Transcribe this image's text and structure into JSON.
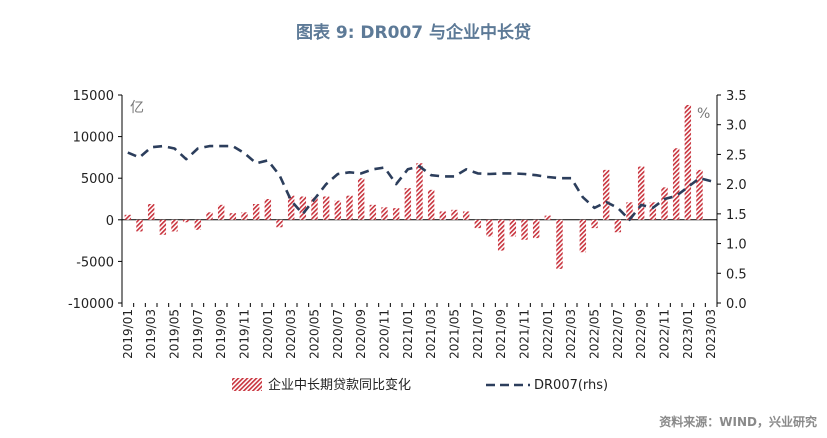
{
  "figure": {
    "title": "图表 9: DR007 与企业中长贷",
    "source": "资料来源：WIND，兴业研究"
  },
  "chart_data": {
    "type": "bar",
    "left_unit": "亿",
    "right_unit": "%",
    "ylim_left": [
      -10000,
      15000
    ],
    "yticks_left": [
      "15000",
      "10000",
      "5000",
      "0",
      "-5000",
      "-10000"
    ],
    "ylim_right": [
      0,
      3.5
    ],
    "yticks_right": [
      "3.5",
      "3.0",
      "2.5",
      "2.0",
      "1.5",
      "1.0",
      "0.5",
      "0.0"
    ],
    "categories": [
      "2019/01",
      "2019/02",
      "2019/03",
      "2019/04",
      "2019/05",
      "2019/06",
      "2019/07",
      "2019/08",
      "2019/09",
      "2019/10",
      "2019/11",
      "2019/12",
      "2020/01",
      "2020/02",
      "2020/03",
      "2020/04",
      "2020/05",
      "2020/06",
      "2020/07",
      "2020/08",
      "2020/09",
      "2020/10",
      "2020/11",
      "2020/12",
      "2021/01",
      "2021/02",
      "2021/03",
      "2021/04",
      "2021/05",
      "2021/06",
      "2021/07",
      "2021/08",
      "2021/09",
      "2021/10",
      "2021/11",
      "2021/12",
      "2022/01",
      "2022/02",
      "2022/03",
      "2022/04",
      "2022/05",
      "2022/06",
      "2022/07",
      "2022/08",
      "2022/09",
      "2022/10",
      "2022/11",
      "2022/12",
      "2023/01",
      "2023/02",
      "2023/03"
    ],
    "xtick_labels": [
      "2019/01",
      "2019/03",
      "2019/05",
      "2019/07",
      "2019/09",
      "2019/11",
      "2020/01",
      "2020/03",
      "2020/05",
      "2020/07",
      "2020/09",
      "2020/11",
      "2021/01",
      "2021/03",
      "2021/05",
      "2021/07",
      "2021/09",
      "2021/11",
      "2022/01",
      "2022/03",
      "2022/05",
      "2022/07",
      "2022/09",
      "2022/11",
      "2023/01",
      "2023/03"
    ],
    "series": [
      {
        "name": "企业中长期贷款同比变化",
        "axis": "left",
        "render": "bar",
        "color": "#c8323c",
        "values": [
          600,
          -1400,
          1900,
          -1800,
          -1400,
          -300,
          -1200,
          900,
          1800,
          800,
          900,
          1900,
          2500,
          -900,
          2900,
          2800,
          2700,
          2800,
          2300,
          2900,
          5000,
          1800,
          1500,
          1400,
          3800,
          6800,
          3600,
          1000,
          1200,
          1000,
          -1000,
          -2000,
          -3700,
          -2000,
          -2400,
          -2200,
          500,
          -5900,
          0,
          -3900,
          -1000,
          6000,
          -1500,
          2100,
          6400,
          2100,
          3900,
          8600,
          13800,
          6000,
          0
        ]
      },
      {
        "name": "DR007(rhs)",
        "axis": "right",
        "render": "line",
        "color": "#2c3e5c",
        "values": [
          2.53,
          2.45,
          2.62,
          2.64,
          2.6,
          2.42,
          2.6,
          2.64,
          2.64,
          2.64,
          2.52,
          2.35,
          2.4,
          2.15,
          1.72,
          1.5,
          1.75,
          2.0,
          2.17,
          2.2,
          2.18,
          2.25,
          2.28,
          2.0,
          2.25,
          2.3,
          2.15,
          2.13,
          2.13,
          2.25,
          2.18,
          2.17,
          2.18,
          2.18,
          2.17,
          2.15,
          2.12,
          2.1,
          2.1,
          1.78,
          1.6,
          1.7,
          1.6,
          1.4,
          1.65,
          1.6,
          1.75,
          1.8,
          1.95,
          2.1,
          2.05
        ]
      }
    ]
  }
}
